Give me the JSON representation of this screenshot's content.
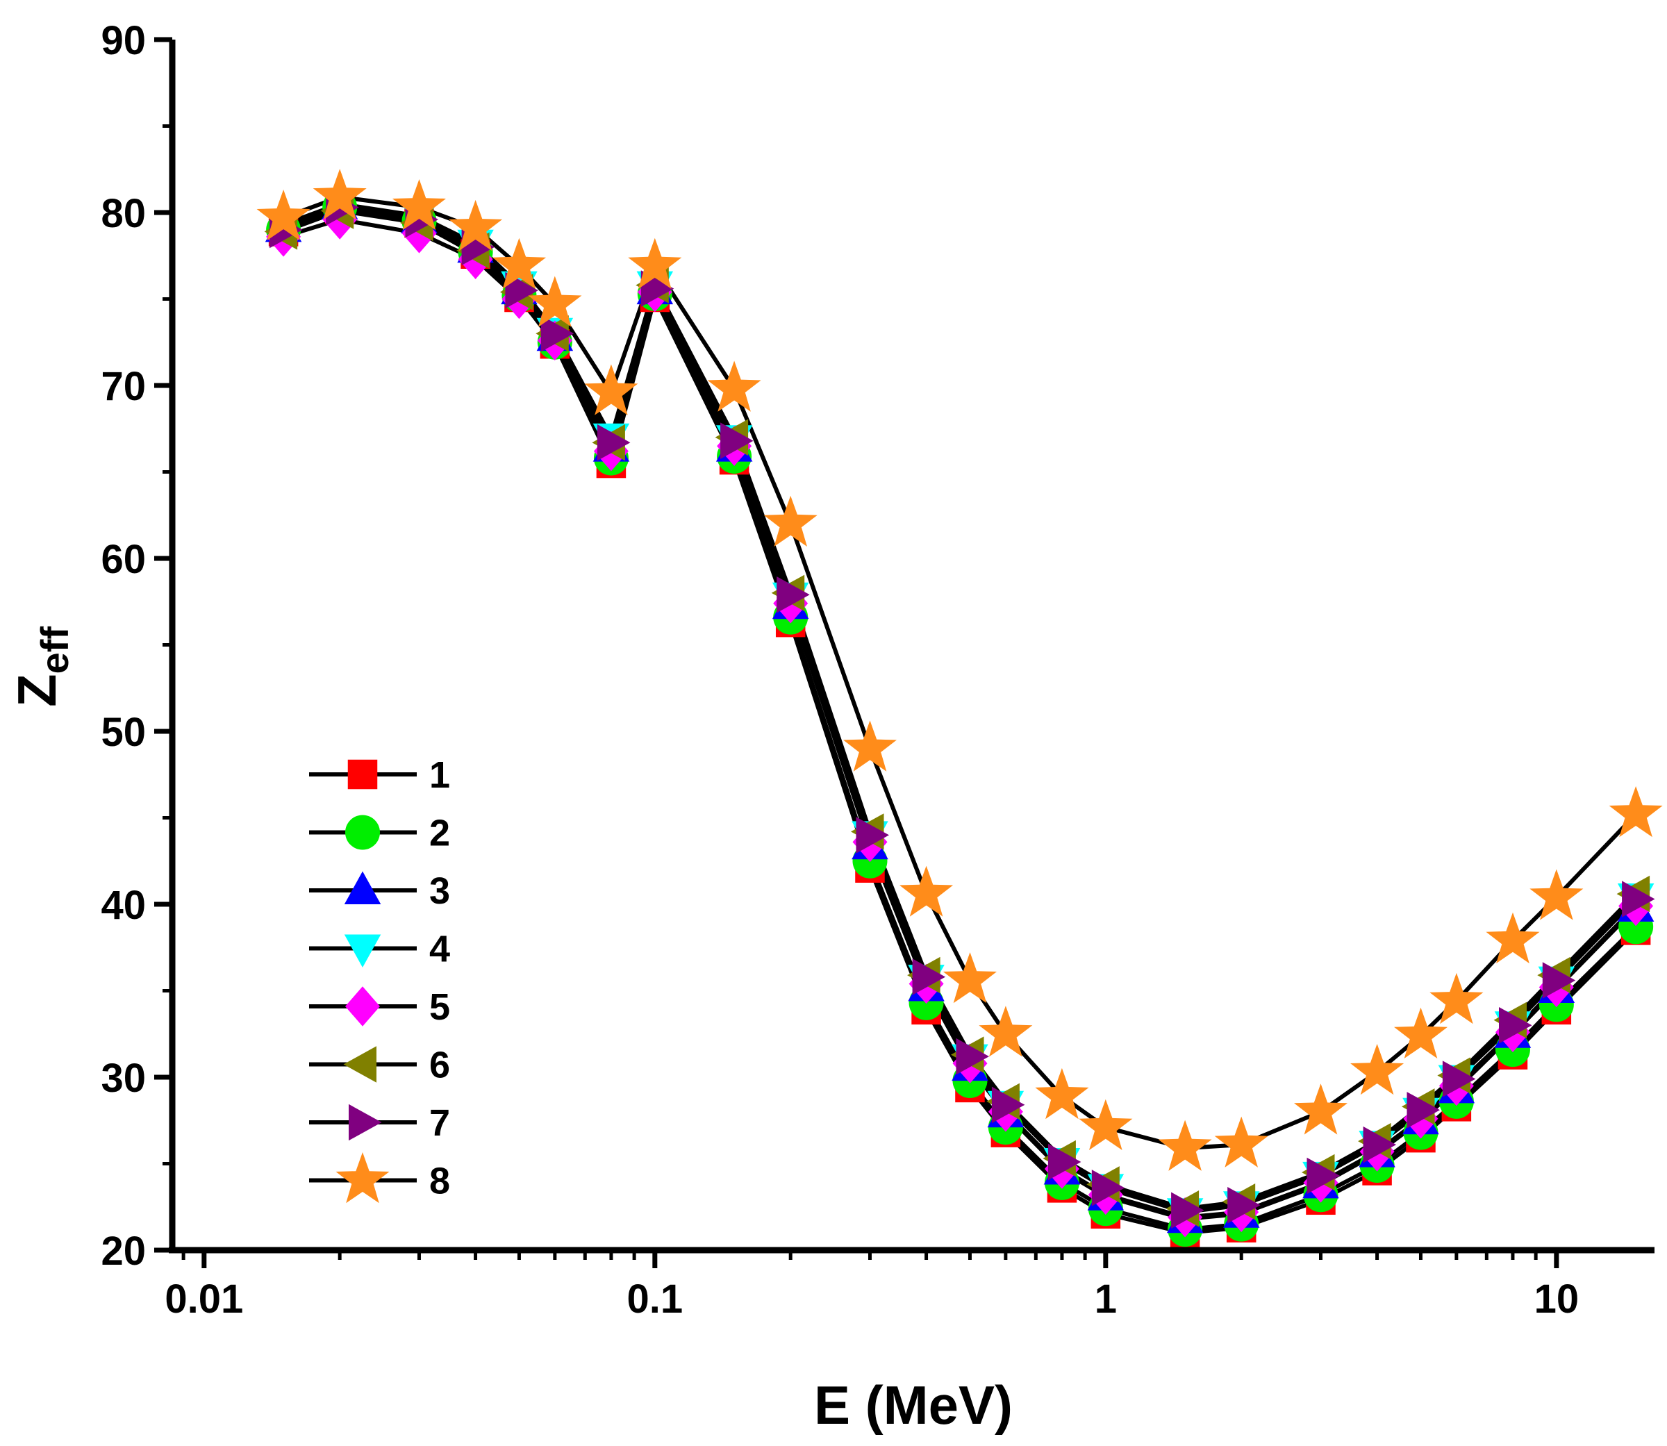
{
  "chart_data": {
    "type": "line",
    "xscale": "log",
    "xlabel": "E (MeV)",
    "ylabel_main": "Z",
    "ylabel_sub": "eff",
    "xlim": [
      0.0085,
      16.5
    ],
    "ylim": [
      20,
      90
    ],
    "x_ticks": [
      0.01,
      0.1,
      1,
      10
    ],
    "x_tick_labels": [
      "0.01",
      "0.1",
      "1",
      "10"
    ],
    "y_ticks": [
      20,
      30,
      40,
      50,
      60,
      70,
      80,
      90
    ],
    "y_tick_labels": [
      "20",
      "30",
      "40",
      "50",
      "60",
      "70",
      "80",
      "90"
    ],
    "legend_position": "bottom-left",
    "x": [
      0.015,
      0.02,
      0.03,
      0.04,
      0.05,
      0.06,
      0.08,
      0.1,
      0.15,
      0.2,
      0.3,
      0.4,
      0.5,
      0.6,
      0.8,
      1,
      1.5,
      2,
      3,
      4,
      5,
      6,
      8,
      10,
      15
    ],
    "series": [
      {
        "name": "1",
        "marker": "square",
        "color": "#ff0000",
        "values": [
          78.9,
          80.2,
          79.4,
          77.6,
          75.1,
          72.4,
          65.5,
          75.1,
          65.7,
          56.3,
          42.1,
          33.9,
          29.4,
          26.8,
          23.6,
          22.1,
          21.0,
          21.3,
          22.9,
          24.6,
          26.5,
          28.3,
          31.3,
          33.9,
          38.5
        ]
      },
      {
        "name": "2",
        "marker": "circle",
        "color": "#00ee00",
        "values": [
          79.0,
          80.3,
          79.5,
          77.7,
          75.2,
          72.5,
          65.8,
          75.3,
          65.9,
          56.6,
          42.5,
          34.3,
          29.8,
          27.1,
          23.9,
          22.4,
          21.2,
          21.5,
          23.2,
          24.9,
          26.8,
          28.6,
          31.6,
          34.2,
          38.7
        ]
      },
      {
        "name": "3",
        "marker": "triangle-up",
        "color": "#0000ff",
        "values": [
          79.1,
          80.4,
          79.6,
          77.9,
          75.5,
          72.8,
          66.4,
          75.5,
          66.4,
          57.3,
          43.4,
          35.2,
          30.6,
          27.9,
          24.6,
          23.1,
          21.8,
          22.1,
          23.8,
          25.6,
          27.5,
          29.3,
          32.5,
          35.1,
          39.8
        ]
      },
      {
        "name": "4",
        "marker": "triangle-down",
        "color": "#00ffff",
        "values": [
          79.3,
          80.5,
          79.8,
          78.2,
          75.8,
          73.1,
          67.0,
          75.8,
          66.9,
          57.8,
          44.0,
          35.7,
          31.1,
          28.4,
          25.1,
          23.6,
          22.2,
          22.6,
          24.3,
          26.1,
          28.0,
          29.9,
          33.0,
          35.6,
          40.4
        ]
      },
      {
        "name": "5",
        "marker": "diamond",
        "color": "#ff00ff",
        "values": [
          78.6,
          79.6,
          78.8,
          77.3,
          75.0,
          72.6,
          66.2,
          75.4,
          66.5,
          57.4,
          43.6,
          35.4,
          30.8,
          28.0,
          24.7,
          23.2,
          21.9,
          22.2,
          23.9,
          25.7,
          27.6,
          29.5,
          32.6,
          35.2,
          39.9
        ]
      },
      {
        "name": "6",
        "marker": "triangle-left",
        "color": "#808000",
        "values": [
          78.9,
          80.1,
          79.4,
          77.8,
          75.4,
          73.0,
          66.7,
          75.8,
          67.0,
          58.0,
          44.2,
          35.9,
          31.3,
          28.6,
          25.3,
          23.8,
          22.4,
          22.8,
          24.5,
          26.3,
          28.3,
          30.1,
          33.3,
          35.9,
          40.6
        ]
      },
      {
        "name": "7",
        "marker": "triangle-right",
        "color": "#800080",
        "values": [
          79.0,
          80.3,
          79.6,
          78.0,
          75.5,
          73.0,
          66.7,
          75.6,
          66.8,
          57.9,
          44.0,
          35.8,
          31.2,
          28.4,
          25.1,
          23.6,
          22.3,
          22.6,
          24.3,
          26.1,
          28.1,
          29.9,
          33.0,
          35.6,
          40.3
        ]
      },
      {
        "name": "8",
        "marker": "star",
        "color": "#ff8c1a",
        "values": [
          79.7,
          80.9,
          80.3,
          79.1,
          76.9,
          74.7,
          69.6,
          76.9,
          69.8,
          62.0,
          49.0,
          40.6,
          35.6,
          32.5,
          28.9,
          27.1,
          25.9,
          26.1,
          28.0,
          30.3,
          32.4,
          34.4,
          37.9,
          40.4,
          45.2
        ]
      }
    ]
  }
}
